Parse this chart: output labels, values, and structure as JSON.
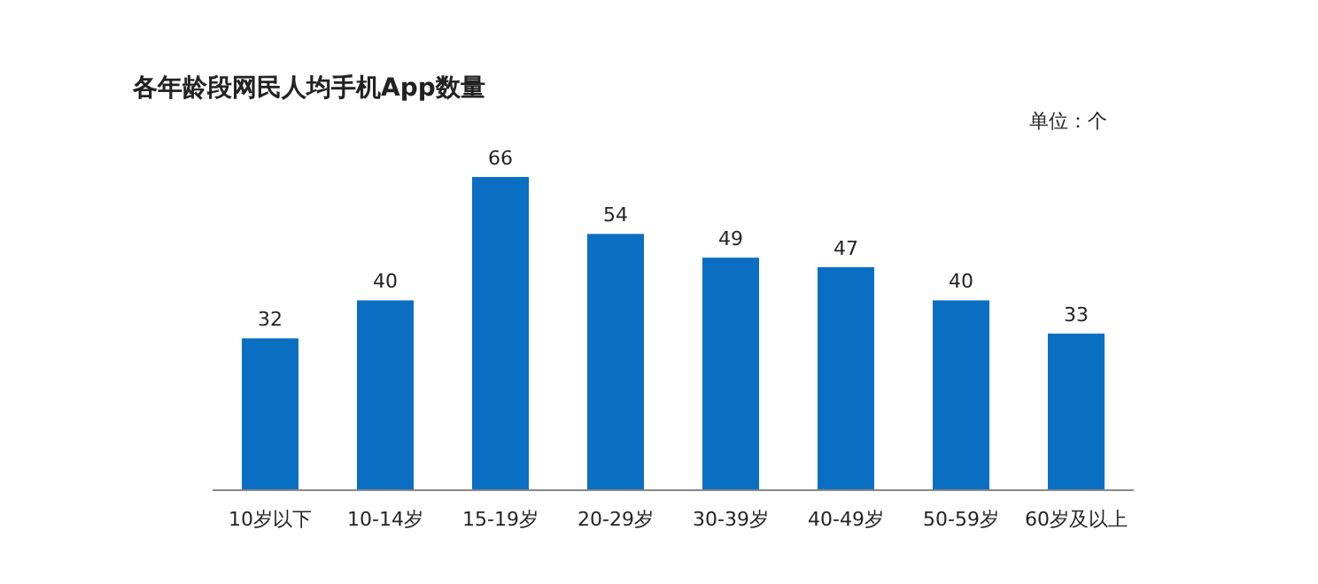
{
  "chart_data": {
    "type": "bar",
    "title": "各年龄段网民人均手机App数量",
    "annotations": [
      "单位：个"
    ],
    "categories": [
      "10岁以下",
      "10-14岁",
      "15-19岁",
      "20-29岁",
      "30-39岁",
      "40-49岁",
      "50-59岁",
      "60岁及以上"
    ],
    "values": [
      32,
      40,
      66,
      54,
      49,
      47,
      40,
      33
    ],
    "color": "#0a6fc2",
    "data_labels": true
  }
}
